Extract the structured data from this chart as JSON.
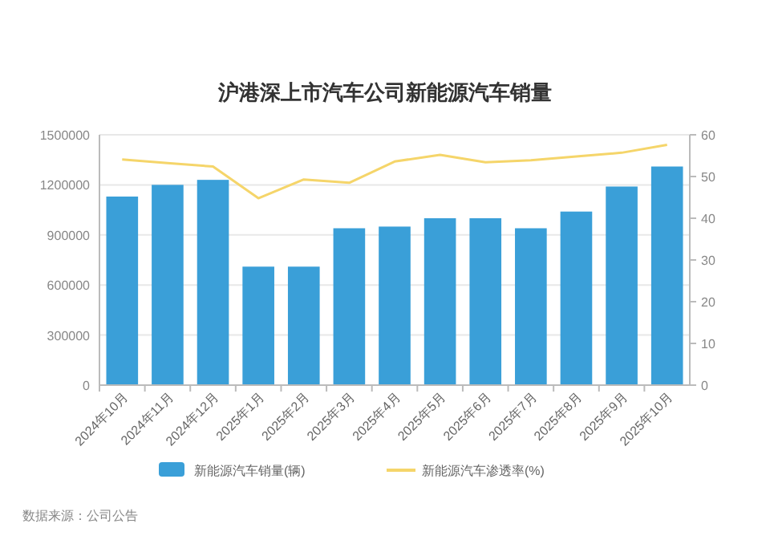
{
  "chart_data": {
    "type": "bar",
    "title": "沪港深上市汽车公司新能源汽车销量",
    "categories": [
      "2024年10月",
      "2024年11月",
      "2024年12月",
      "2025年1月",
      "2025年2月",
      "2025年3月",
      "2025年4月",
      "2025年5月",
      "2025年6月",
      "2025年7月",
      "2025年8月",
      "2025年9月",
      "2025年10月"
    ],
    "series": [
      {
        "name": "新能源汽车销量(辆)",
        "color": "#3a9fd8",
        "values": [
          1130000,
          1200000,
          1230000,
          710000,
          710000,
          940000,
          950000,
          1000000,
          1000000,
          940000,
          1040000,
          1190000,
          1310000
        ]
      },
      {
        "name": "新能源汽车渗透率(%)",
        "type": "line",
        "axis": "y2",
        "color": "#f5d56a",
        "values": [
          54.1,
          53.2,
          52.4,
          44.8,
          49.3,
          48.5,
          53.6,
          55.2,
          53.4,
          53.9,
          54.8,
          55.7,
          57.6
        ]
      }
    ],
    "ylim": [
      0,
      1500000
    ],
    "yticks": [
      0,
      300000,
      600000,
      900000,
      1200000,
      1500000
    ],
    "y2lim": [
      0,
      60
    ],
    "y2ticks": [
      0,
      10,
      20,
      30,
      40,
      50,
      60
    ],
    "grid": "y",
    "legend": "bottom",
    "marker": "none",
    "line_style": "solid",
    "annotations": [
      "数据来源：公司公告"
    ]
  }
}
